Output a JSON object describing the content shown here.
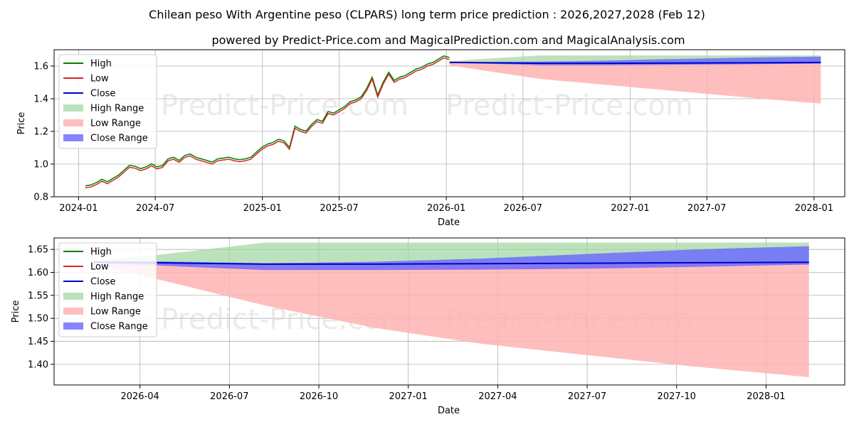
{
  "title": "Chilean peso With Argentine peso (CLPARS) long term price prediction : 2026,2027,2028 (Feb 12)",
  "subtitle": "powered by Predict-Price.com and MagicalPrediction.com and MagicalAnalysis.com",
  "watermark": "Predict-Price.com",
  "colors": {
    "high": "#008000",
    "low": "#d62728",
    "close": "#0000cc",
    "high_range": "#9fd59f",
    "low_range": "#ffb3b3",
    "close_range": "#6666ff",
    "grid": "#b0b0b0"
  },
  "legend_labels": [
    "High",
    "Low",
    "Close",
    "High Range",
    "Low Range",
    "Close Range"
  ],
  "chart_data": [
    {
      "type": "line",
      "name": "history-and-forecast",
      "xlabel": "Date",
      "ylabel": "Price",
      "xlim": [
        2023.95,
        2028.25
      ],
      "ylim": [
        0.8,
        1.7
      ],
      "grid": true,
      "legend": "top-left",
      "x_ticks": [
        {
          "v": 2024.083,
          "label": "2024-01"
        },
        {
          "v": 2024.5,
          "label": "2024-07"
        },
        {
          "v": 2025.083,
          "label": "2025-01"
        },
        {
          "v": 2025.5,
          "label": "2025-07"
        },
        {
          "v": 2026.083,
          "label": "2026-01"
        },
        {
          "v": 2026.5,
          "label": "2026-07"
        },
        {
          "v": 2027.083,
          "label": "2027-01"
        },
        {
          "v": 2027.5,
          "label": "2027-07"
        },
        {
          "v": 2028.083,
          "label": "2028-01"
        }
      ],
      "y_ticks": [
        {
          "v": 0.8,
          "label": "0.8"
        },
        {
          "v": 1.0,
          "label": "1.0"
        },
        {
          "v": 1.2,
          "label": "1.2"
        },
        {
          "v": 1.4,
          "label": "1.4"
        },
        {
          "v": 1.6,
          "label": "1.6"
        }
      ],
      "history": {
        "x": [
          2024.12,
          2024.15,
          2024.18,
          2024.21,
          2024.24,
          2024.27,
          2024.3,
          2024.33,
          2024.36,
          2024.39,
          2024.42,
          2024.45,
          2024.48,
          2024.51,
          2024.54,
          2024.57,
          2024.6,
          2024.63,
          2024.66,
          2024.69,
          2024.72,
          2024.75,
          2024.78,
          2024.81,
          2024.84,
          2024.87,
          2024.9,
          2024.93,
          2024.96,
          2024.99,
          2025.02,
          2025.05,
          2025.08,
          2025.11,
          2025.14,
          2025.17,
          2025.2,
          2025.23,
          2025.26,
          2025.29,
          2025.32,
          2025.35,
          2025.38,
          2025.41,
          2025.44,
          2025.47,
          2025.5,
          2025.53,
          2025.56,
          2025.59,
          2025.62,
          2025.65,
          2025.68,
          2025.71,
          2025.74,
          2025.77,
          2025.8,
          2025.83,
          2025.86,
          2025.89,
          2025.92,
          2025.95,
          2025.98,
          2026.01,
          2026.04,
          2026.07,
          2026.1
        ],
        "close": [
          0.855,
          0.86,
          0.875,
          0.895,
          0.88,
          0.9,
          0.92,
          0.95,
          0.98,
          0.975,
          0.96,
          0.97,
          0.99,
          0.97,
          0.98,
          1.02,
          1.03,
          1.01,
          1.04,
          1.05,
          1.03,
          1.02,
          1.01,
          1.0,
          1.02,
          1.025,
          1.03,
          1.02,
          1.015,
          1.02,
          1.03,
          1.06,
          1.09,
          1.11,
          1.12,
          1.14,
          1.13,
          1.09,
          1.22,
          1.2,
          1.19,
          1.23,
          1.26,
          1.25,
          1.31,
          1.3,
          1.32,
          1.34,
          1.37,
          1.38,
          1.4,
          1.45,
          1.52,
          1.41,
          1.49,
          1.55,
          1.5,
          1.52,
          1.53,
          1.55,
          1.57,
          1.58,
          1.6,
          1.61,
          1.63,
          1.65,
          1.64
        ]
      },
      "forecast": {
        "x": [
          2026.1,
          2026.3,
          2026.6,
          2026.9,
          2027.2,
          2027.5,
          2027.8,
          2028.12
        ],
        "close": [
          1.622,
          1.62,
          1.617,
          1.617,
          1.618,
          1.619,
          1.62,
          1.622
        ],
        "high_range": [
          1.63,
          1.645,
          1.665,
          1.665,
          1.665,
          1.665,
          1.665,
          1.665
        ],
        "low_range": [
          1.605,
          1.57,
          1.52,
          1.49,
          1.46,
          1.43,
          1.4,
          1.37
        ],
        "close_upper": [
          1.625,
          1.625,
          1.628,
          1.632,
          1.64,
          1.647,
          1.653,
          1.658
        ],
        "close_lower": [
          1.62,
          1.615,
          1.605,
          1.605,
          1.607,
          1.609,
          1.612,
          1.615
        ]
      }
    },
    {
      "type": "line",
      "name": "forecast-zoom",
      "xlabel": "Date",
      "ylabel": "Price",
      "xlim": [
        2026.01,
        2028.22
      ],
      "ylim": [
        1.355,
        1.675
      ],
      "grid": true,
      "legend": "top-left",
      "x_ticks": [
        {
          "v": 2026.25,
          "label": "2026-04"
        },
        {
          "v": 2026.5,
          "label": "2026-07"
        },
        {
          "v": 2026.75,
          "label": "2026-10"
        },
        {
          "v": 2027.0,
          "label": "2027-01"
        },
        {
          "v": 2027.25,
          "label": "2027-04"
        },
        {
          "v": 2027.5,
          "label": "2027-07"
        },
        {
          "v": 2027.75,
          "label": "2027-10"
        },
        {
          "v": 2028.0,
          "label": "2028-01"
        }
      ],
      "y_ticks": [
        {
          "v": 1.4,
          "label": "1.40"
        },
        {
          "v": 1.45,
          "label": "1.45"
        },
        {
          "v": 1.5,
          "label": "1.50"
        },
        {
          "v": 1.55,
          "label": "1.55"
        },
        {
          "v": 1.6,
          "label": "1.60"
        },
        {
          "v": 1.65,
          "label": "1.65"
        }
      ],
      "forecast": {
        "x": [
          2026.12,
          2026.3,
          2026.6,
          2026.9,
          2027.2,
          2027.5,
          2027.8,
          2028.12
        ],
        "close": [
          1.622,
          1.621,
          1.618,
          1.618,
          1.619,
          1.62,
          1.621,
          1.622
        ],
        "high_range": [
          1.625,
          1.638,
          1.665,
          1.665,
          1.665,
          1.665,
          1.665,
          1.665
        ],
        "low_range": [
          1.617,
          1.585,
          1.528,
          1.48,
          1.445,
          1.42,
          1.395,
          1.372
        ],
        "close_upper": [
          1.624,
          1.624,
          1.62,
          1.623,
          1.63,
          1.64,
          1.65,
          1.657
        ],
        "close_lower": [
          1.62,
          1.615,
          1.605,
          1.605,
          1.606,
          1.608,
          1.612,
          1.617
        ]
      }
    }
  ]
}
